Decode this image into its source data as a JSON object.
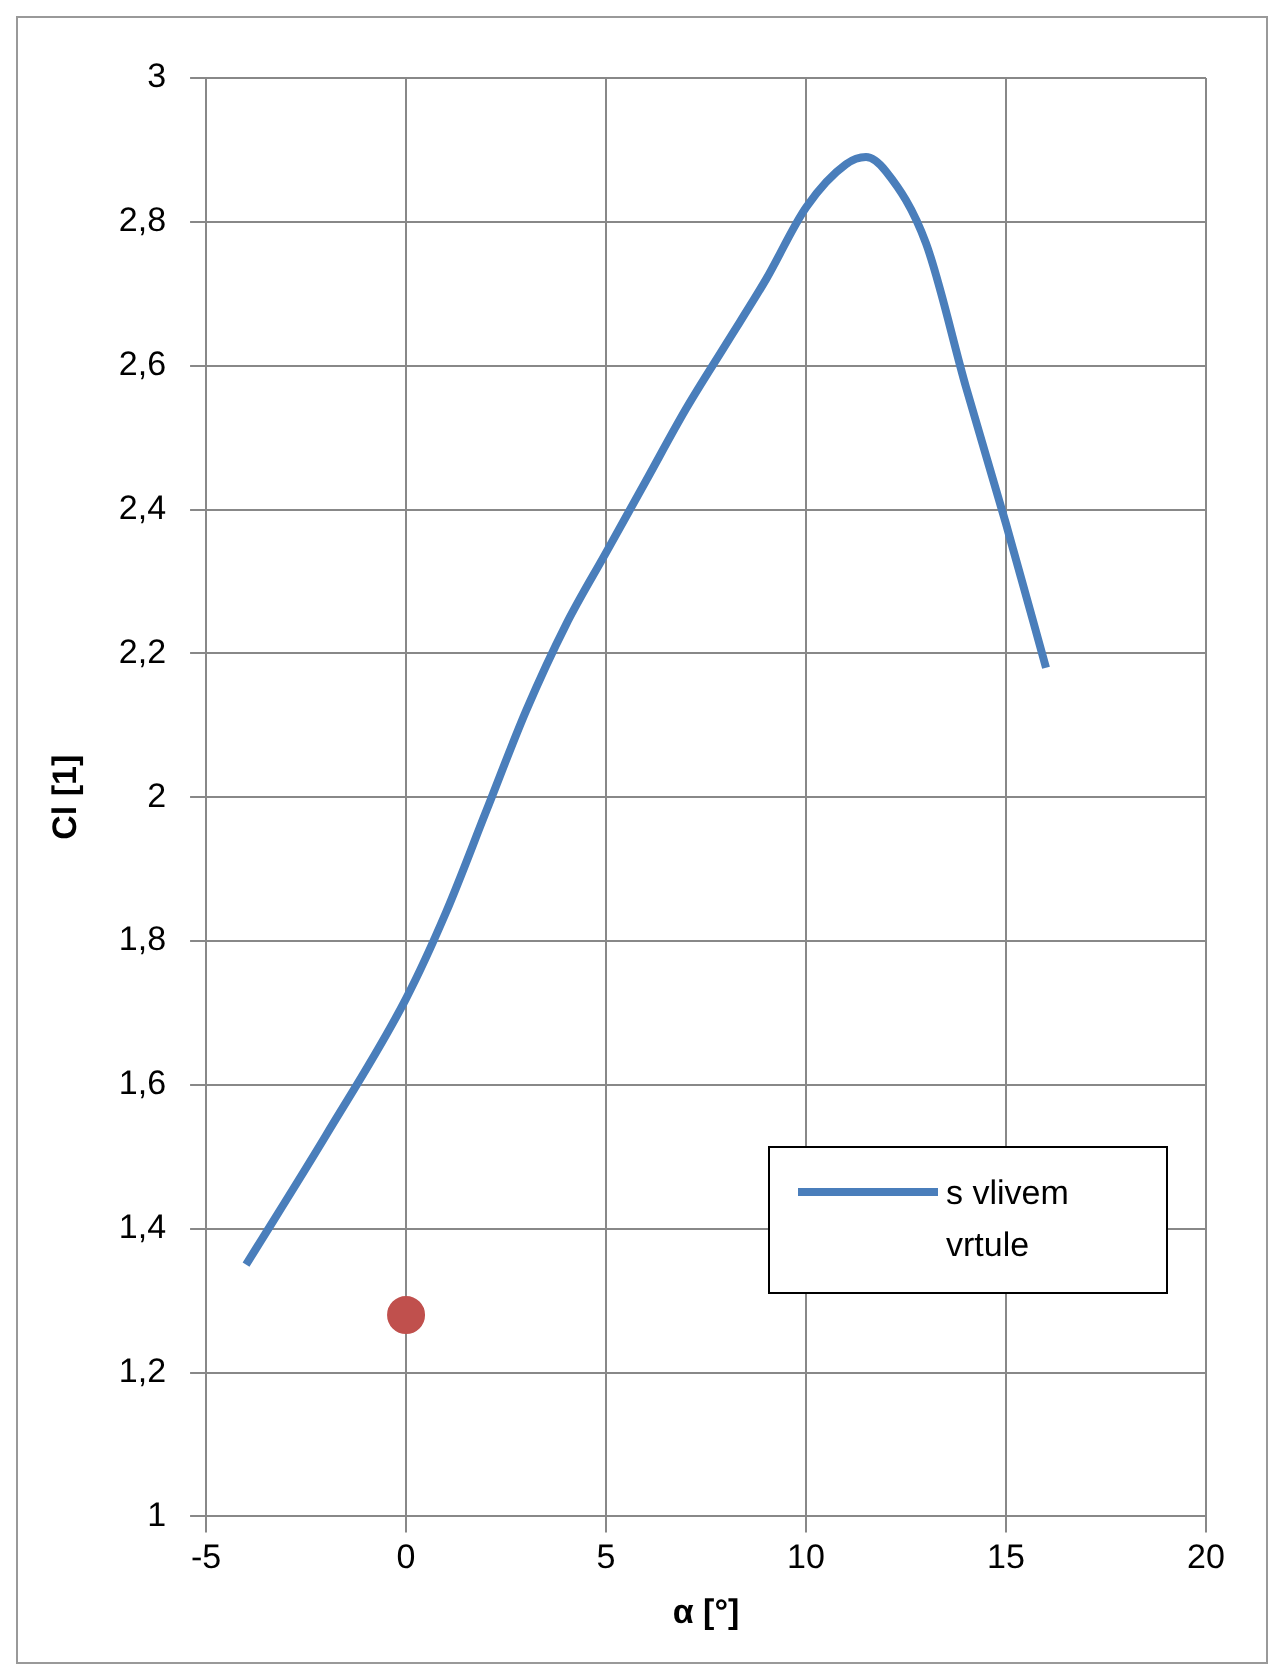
{
  "chart_data": {
    "type": "line",
    "xlabel": "α [°]",
    "ylabel": "Cl [1]",
    "xlim": [
      -5,
      20
    ],
    "xticks": [
      -5,
      0,
      5,
      10,
      15,
      20
    ],
    "ylim": [
      1,
      3
    ],
    "yticks": [
      1,
      {
        "value": 1.2,
        "label": "1,2"
      },
      {
        "value": 1.4,
        "label": "1,4"
      },
      {
        "value": 1.6,
        "label": "1,6"
      },
      {
        "value": 1.8,
        "label": "1,8"
      },
      2,
      {
        "value": 2.2,
        "label": "2,2"
      },
      {
        "value": 2.4,
        "label": "2,4"
      },
      {
        "value": 2.6,
        "label": "2,6"
      },
      {
        "value": 2.8,
        "label": "2,8"
      },
      3
    ],
    "grid": true,
    "legend": "bottom right",
    "marker": "none",
    "series": [
      {
        "name": "s vlivem vrtule",
        "type": "line",
        "color": "#4a7ebb",
        "x": [
          -4,
          -2,
          0,
          1,
          2,
          3,
          4,
          5,
          6,
          7,
          8,
          9,
          10,
          11,
          11.5,
          12,
          13,
          14,
          15,
          16
        ],
        "values": [
          1.35,
          1.53,
          1.72,
          1.84,
          1.98,
          2.12,
          2.24,
          2.34,
          2.44,
          2.54,
          2.63,
          2.72,
          2.82,
          2.88,
          2.89,
          2.87,
          2.77,
          2.57,
          2.38,
          2.18
        ]
      },
      {
        "type": "scatter",
        "marker": "circle",
        "color": "#c0504d",
        "x": [
          0
        ],
        "values": [
          1.28
        ]
      }
    ]
  }
}
